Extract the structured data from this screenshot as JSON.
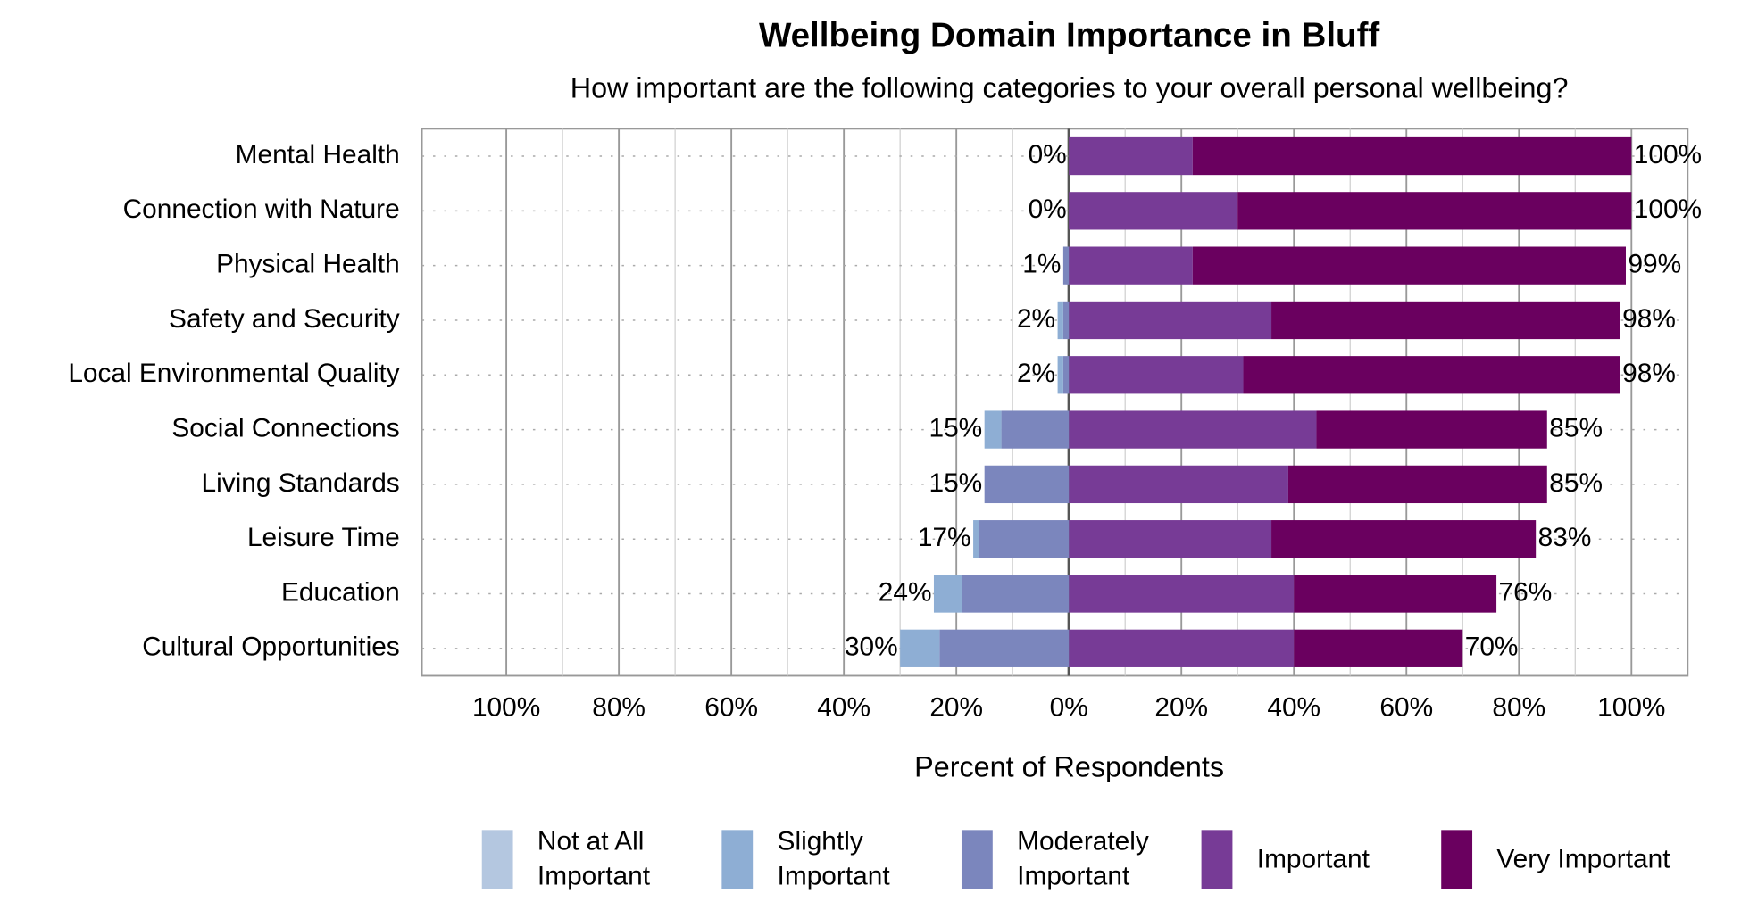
{
  "chart_data": {
    "type": "diverging_bar",
    "title": "Wellbeing Domain Importance in Bluff",
    "subtitle": "How important are the following categories to your overall personal wellbeing?",
    "x_label": "Percent of Respondents",
    "categories": [
      "Mental Health",
      "Connection with Nature",
      "Physical Health",
      "Safety and Security",
      "Local Environmental Quality",
      "Social Connections",
      "Living Standards",
      "Leisure Time",
      "Education",
      "Cultural Opportunities"
    ],
    "series": [
      {
        "name": "Not at All Important",
        "color": "#b4c7e0",
        "side": "left",
        "values": [
          0,
          0,
          0,
          0,
          0,
          0,
          0,
          0,
          0,
          0
        ]
      },
      {
        "name": "Slightly Important",
        "color": "#8eaed4",
        "side": "left",
        "values": [
          0,
          0,
          0,
          1,
          1,
          3,
          0,
          1,
          5,
          7
        ]
      },
      {
        "name": "Moderately Important",
        "color": "#7b86bd",
        "side": "left",
        "values": [
          0,
          0,
          1,
          1,
          1,
          12,
          15,
          16,
          19,
          23
        ]
      },
      {
        "name": "Important",
        "color": "#773b96",
        "side": "right",
        "values": [
          22,
          30,
          22,
          36,
          31,
          44,
          39,
          36,
          40,
          40
        ]
      },
      {
        "name": "Very Important",
        "color": "#6a005f",
        "side": "right",
        "values": [
          78,
          70,
          77,
          62,
          67,
          41,
          46,
          47,
          36,
          30
        ]
      }
    ],
    "left_totals": {
      "values": [
        0,
        0,
        1,
        2,
        2,
        15,
        15,
        17,
        24,
        30
      ],
      "value_labels": [
        "0%",
        "0%",
        "1%",
        "2%",
        "2%",
        "15%",
        "15%",
        "17%",
        "24%",
        "30%"
      ]
    },
    "right_totals": {
      "values": [
        100,
        100,
        99,
        98,
        98,
        85,
        85,
        83,
        76,
        70
      ],
      "value_labels": [
        "100%",
        "100%",
        "99%",
        "98%",
        "98%",
        "85%",
        "85%",
        "83%",
        "76%",
        "70%"
      ]
    },
    "xlim": [
      -115,
      110
    ],
    "xticks": [
      {
        "value": -100,
        "label": "100%"
      },
      {
        "value": -80,
        "label": "80%"
      },
      {
        "value": -60,
        "label": "60%"
      },
      {
        "value": -40,
        "label": "40%"
      },
      {
        "value": -20,
        "label": "20%"
      },
      {
        "value": 0,
        "label": "0%"
      },
      {
        "value": 20,
        "label": "20%"
      },
      {
        "value": 40,
        "label": "40%"
      },
      {
        "value": 60,
        "label": "60%"
      },
      {
        "value": 80,
        "label": "80%"
      },
      {
        "value": 100,
        "label": "100%"
      }
    ],
    "grid": true,
    "legend": "bottom"
  }
}
